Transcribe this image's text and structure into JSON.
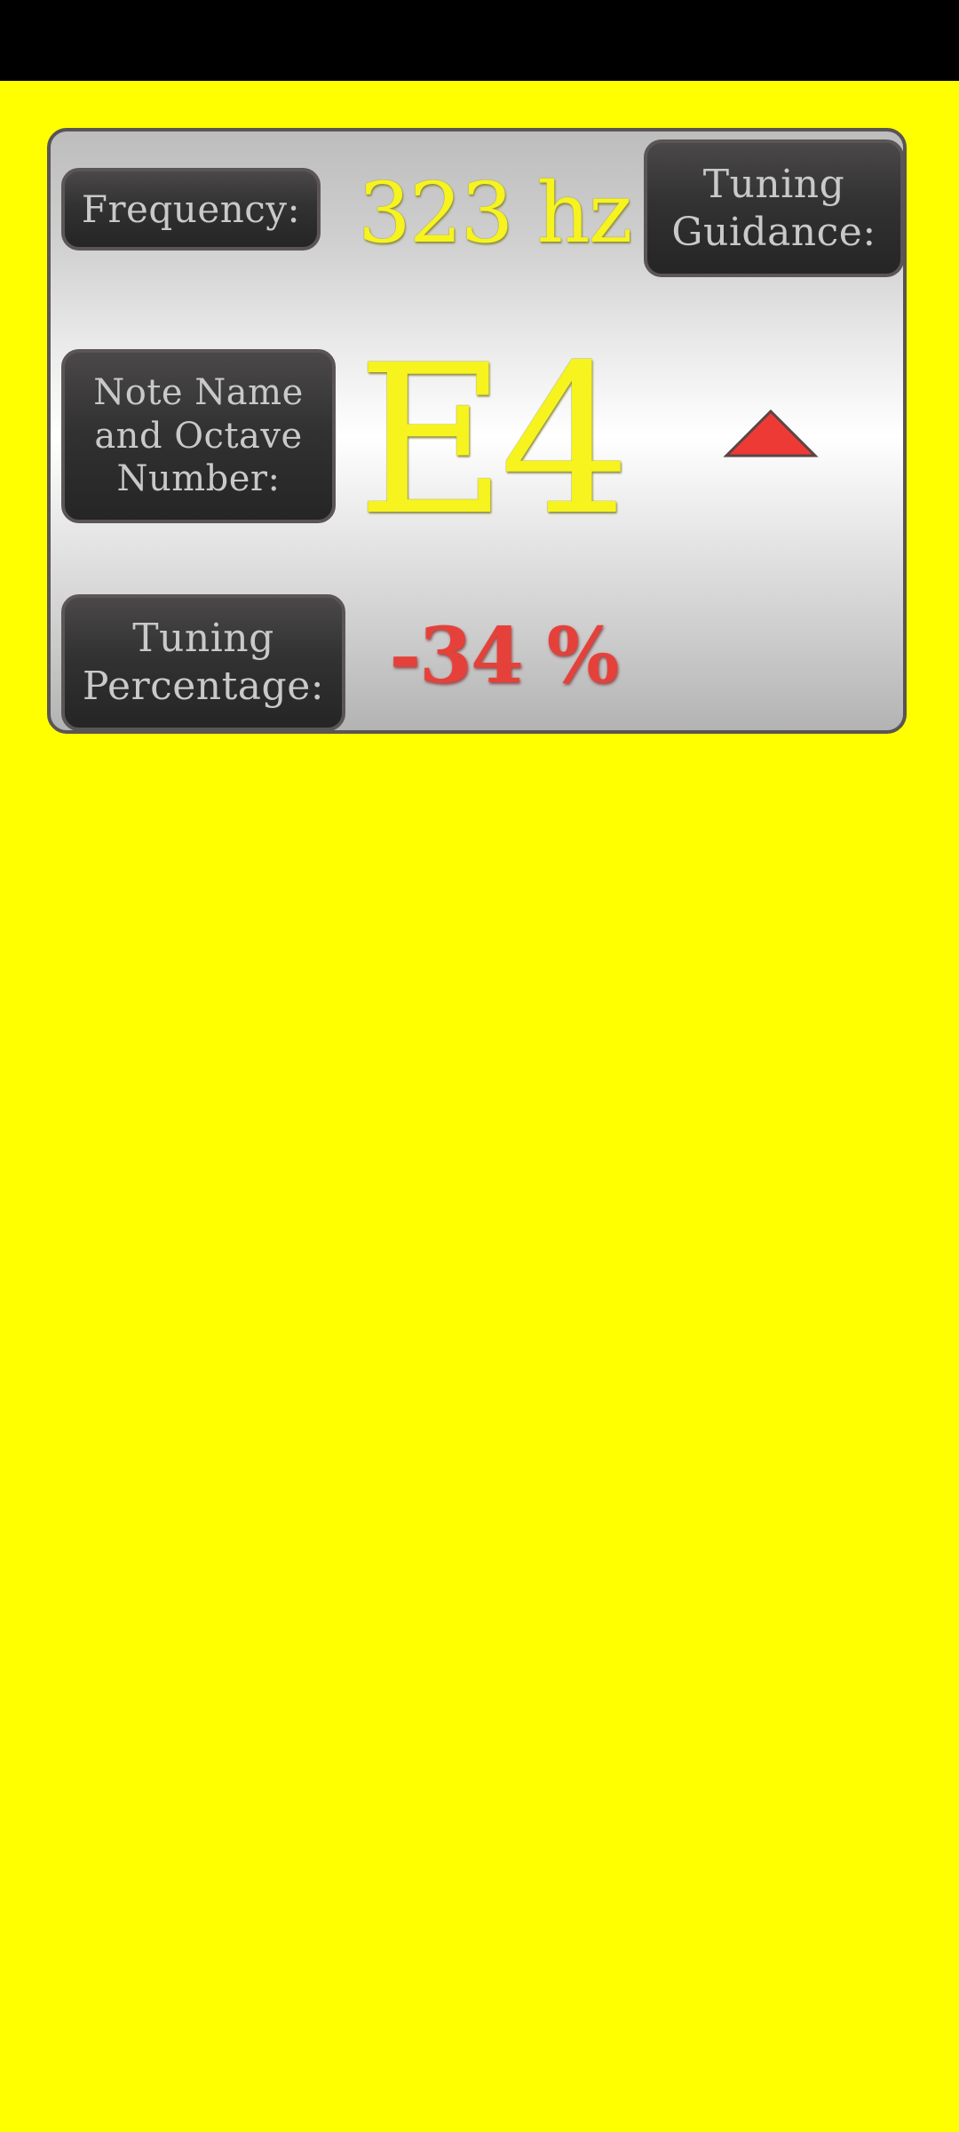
{
  "screen": {
    "background_color": "#ffff00",
    "status_bar_color": "#000000"
  },
  "tuner": {
    "frequency": {
      "label_lines": [
        "Frequency:"
      ],
      "value": "323 hz"
    },
    "guidance": {
      "label_lines": [
        "Tuning",
        "Guidance:"
      ],
      "direction": "up",
      "indicator_icon": "triangle-up-icon",
      "indicator_color": "#ee3a35"
    },
    "note": {
      "label_lines": [
        "Note Name",
        "and Octave",
        "Number:"
      ],
      "value": "E4"
    },
    "percentage": {
      "label_lines": [
        "Tuning",
        "Percentage:"
      ],
      "value": "-34 %"
    },
    "colors": {
      "value_text": "#f6f31f",
      "percentage_text": "#e5413a",
      "label_text": "#c9c9c9"
    }
  }
}
